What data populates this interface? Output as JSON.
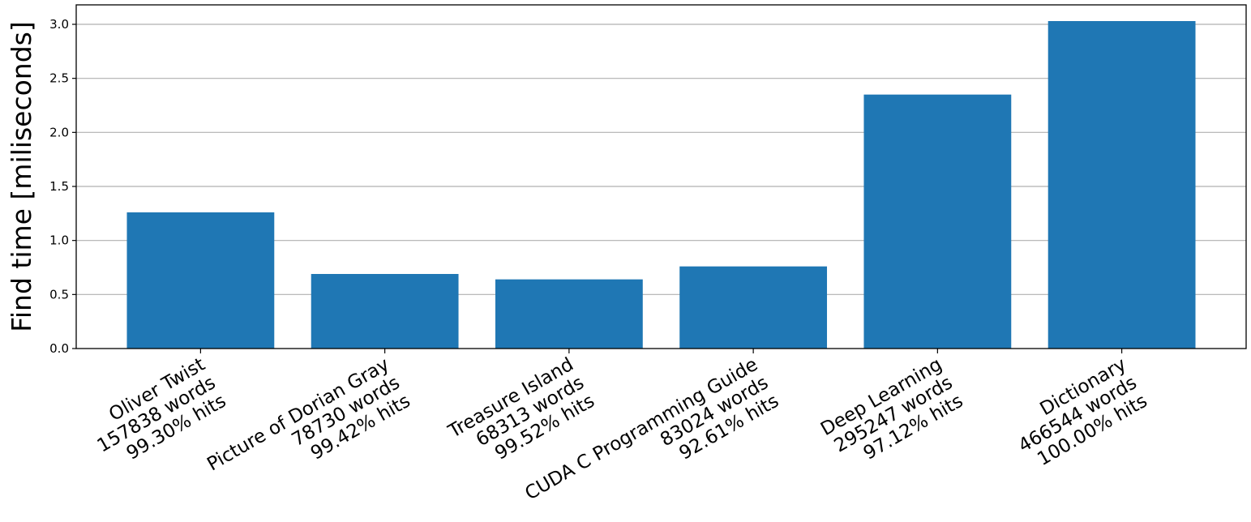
{
  "chart_data": {
    "type": "bar",
    "title": "",
    "xlabel": "",
    "ylabel": "Find time [miliseconds]",
    "categories": [
      [
        "Oliver Twist",
        "157838 words",
        "99.30% hits"
      ],
      [
        "Picture of Dorian Gray",
        "78730 words",
        "99.42% hits"
      ],
      [
        "Treasure Island",
        "68313 words",
        "99.52% hits"
      ],
      [
        "CUDA C Programming Guide",
        "83024 words",
        "92.61% hits"
      ],
      [
        "Deep Learning",
        "295247 words",
        "97.12% hits"
      ],
      [
        "Dictionary",
        "466544 words",
        "100.00% hits"
      ]
    ],
    "values": [
      1.26,
      0.69,
      0.64,
      0.76,
      2.35,
      3.03
    ],
    "ylim": [
      0,
      3.18
    ],
    "yticks": [
      "0.0",
      "0.5",
      "1.0",
      "1.5",
      "2.0",
      "2.5",
      "3.0"
    ],
    "grid": "y",
    "bar_color": "#1f77b4",
    "grid_color": "#b0b0b0"
  }
}
